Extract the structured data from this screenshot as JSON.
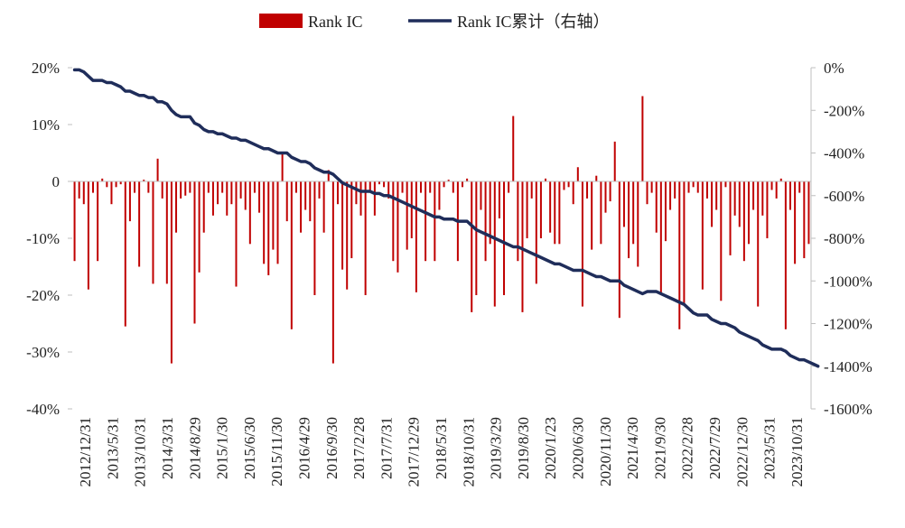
{
  "chart_data": {
    "type": "bar+line",
    "title": "",
    "xlabel": "",
    "ylabel": "",
    "legend_position": "top",
    "grid": false,
    "colors": {
      "bar": "#C00000",
      "line": "#1F2D5A",
      "axis": "#BFBFBF",
      "text": "#222222"
    },
    "left_axis": {
      "ylim": [
        -40,
        20
      ],
      "ticks": [
        20,
        10,
        0,
        -10,
        -20,
        -30,
        -40
      ],
      "tick_labels": [
        "20%",
        "10%",
        "0",
        "-10%",
        "-20%",
        "-30%",
        "-40%"
      ]
    },
    "right_axis": {
      "ylim": [
        -1600,
        0
      ],
      "ticks": [
        0,
        -200,
        -400,
        -600,
        -800,
        -1000,
        -1200,
        -1400,
        -1600
      ],
      "tick_labels": [
        "0%",
        "-200%",
        "-400%",
        "-600%",
        "-800%",
        "-1000%",
        "-1200%",
        "-1400%",
        "-1600%"
      ]
    },
    "x_tick_labels": [
      "2012/12/31",
      "2013/5/31",
      "2013/10/31",
      "2014/3/31",
      "2014/8/29",
      "2015/1/30",
      "2015/6/30",
      "2015/11/30",
      "2016/4/29",
      "2016/9/30",
      "2017/2/28",
      "2017/7/31",
      "2017/12/29",
      "2018/5/31",
      "2018/10/31",
      "2019/3/29",
      "2019/8/30",
      "2020/1/23",
      "2020/6/30",
      "2020/11/30",
      "2021/4/30",
      "2021/9/30",
      "2022/2/28",
      "2022/7/29",
      "2022/12/30",
      "2023/5/31",
      "2023/10/31"
    ],
    "series": [
      {
        "name": "Rank IC",
        "type": "bar",
        "axis": "left",
        "values": [
          -14,
          -3,
          -4,
          -19,
          -2,
          -14,
          0.5,
          -1,
          -4,
          -1,
          -0.5,
          -25.5,
          -7,
          -2,
          -15,
          0.3,
          -2,
          -18,
          4,
          -3,
          -18,
          -32,
          -9,
          -3,
          -2.5,
          -2,
          -25,
          -16,
          -9,
          -2,
          -6,
          -4,
          -2,
          -6,
          -4,
          -18.5,
          -3,
          -5,
          -11,
          -2,
          -5.5,
          -14.5,
          -16.5,
          -12,
          -14.5,
          5,
          -7,
          -26,
          -2,
          -9,
          -5,
          -7,
          -20,
          -3,
          -9,
          2,
          -32,
          -4,
          -15.5,
          -19,
          -13.5,
          -4,
          -6,
          -20,
          -2,
          -6,
          -0.5,
          -1,
          -3,
          -14,
          -16,
          -2,
          -12,
          -10,
          -19.5,
          -2,
          -14,
          -2,
          -14,
          -5,
          -1,
          0.3,
          -2,
          -14,
          -1,
          0.5,
          -23,
          -20,
          -5,
          -14,
          -11,
          -22,
          -6.5,
          -20,
          -2,
          11.5,
          -14,
          -23,
          -10,
          -3,
          -18,
          -10,
          0.5,
          -9,
          -11,
          -11,
          -1.5,
          -1,
          -4,
          2.5,
          -22,
          -3,
          -12,
          1,
          -11,
          -5.5,
          -3.5,
          7,
          -24,
          -8,
          -13.5,
          -11,
          -15,
          15,
          -4,
          -2,
          -9,
          -20,
          -10.5,
          -5,
          -3,
          -26,
          -21.5,
          -2,
          -1,
          -2,
          -19,
          -3,
          -8,
          -5,
          -21,
          -1,
          -13,
          -6,
          -8,
          -14,
          -11,
          -5,
          -22,
          -6,
          -10,
          -1.5,
          -3,
          0.5,
          -26,
          -5,
          -14.5,
          -2,
          -13.5,
          -11
        ]
      },
      {
        "name": "Rank IC累计（右轴）",
        "type": "line",
        "axis": "right",
        "values": [
          -10,
          -10,
          -20,
          -40,
          -60,
          -60,
          -60,
          -70,
          -70,
          -80,
          -90,
          -110,
          -110,
          -120,
          -130,
          -130,
          -140,
          -140,
          -160,
          -160,
          -170,
          -200,
          -220,
          -230,
          -230,
          -230,
          -260,
          -270,
          -290,
          -300,
          -300,
          -310,
          -310,
          -320,
          -330,
          -330,
          -340,
          -340,
          -350,
          -360,
          -370,
          -380,
          -380,
          -390,
          -400,
          -400,
          -400,
          -420,
          -430,
          -440,
          -440,
          -450,
          -470,
          -480,
          -490,
          -490,
          -500,
          -520,
          -540,
          -550,
          -560,
          -570,
          -580,
          -580,
          -580,
          -590,
          -590,
          -600,
          -600,
          -610,
          -620,
          -630,
          -640,
          -650,
          -660,
          -670,
          -680,
          -690,
          -700,
          -700,
          -710,
          -710,
          -710,
          -720,
          -720,
          -720,
          -740,
          -760,
          -770,
          -780,
          -790,
          -800,
          -810,
          -820,
          -830,
          -840,
          -840,
          -850,
          -860,
          -870,
          -880,
          -890,
          -900,
          -910,
          -920,
          -920,
          -930,
          -940,
          -950,
          -950,
          -950,
          -960,
          -970,
          -980,
          -980,
          -990,
          -1000,
          -1000,
          -1000,
          -1020,
          -1030,
          -1040,
          -1050,
          -1060,
          -1050,
          -1050,
          -1050,
          -1060,
          -1070,
          -1080,
          -1090,
          -1100,
          -1110,
          -1130,
          -1150,
          -1160,
          -1160,
          -1160,
          -1180,
          -1190,
          -1200,
          -1200,
          -1210,
          -1220,
          -1240,
          -1250,
          -1260,
          -1270,
          -1280,
          -1300,
          -1310,
          -1320,
          -1320,
          -1320,
          -1330,
          -1350,
          -1360,
          -1370,
          -1370,
          -1380,
          -1390,
          -1400
        ]
      }
    ]
  }
}
